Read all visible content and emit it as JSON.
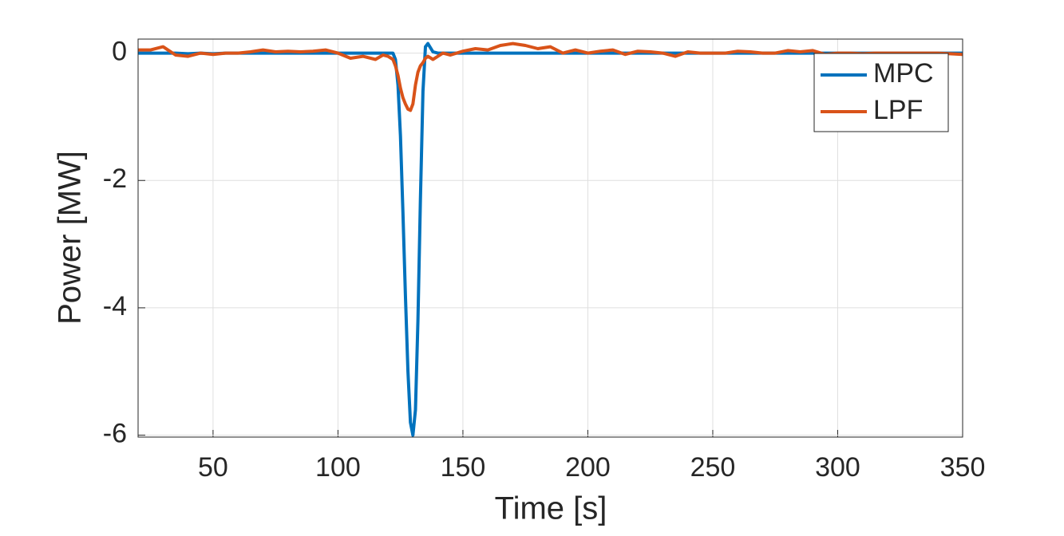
{
  "chart_data": {
    "type": "line",
    "xlabel": "Time [s]",
    "ylabel": "Power [MW]",
    "x": [
      20,
      25,
      30,
      35,
      40,
      45,
      50,
      55,
      60,
      65,
      70,
      75,
      80,
      85,
      90,
      95,
      100,
      105,
      110,
      115,
      118,
      120,
      122,
      123,
      124,
      125,
      126,
      127,
      128,
      129,
      130,
      131,
      132,
      133,
      134,
      135,
      136,
      138,
      140,
      142,
      145,
      150,
      155,
      160,
      165,
      170,
      175,
      180,
      185,
      190,
      195,
      200,
      205,
      210,
      215,
      220,
      225,
      230,
      235,
      240,
      245,
      250,
      255,
      260,
      265,
      270,
      275,
      280,
      285,
      290,
      295,
      300,
      305,
      310,
      315,
      320,
      325,
      330,
      335,
      340,
      345,
      350
    ],
    "series": [
      {
        "name": "MPC",
        "color": "#0072bd",
        "values": [
          0,
          0,
          0,
          0,
          -0.01,
          0,
          -0.01,
          0,
          0,
          0,
          0,
          0,
          0,
          0,
          0,
          0,
          0,
          0,
          0,
          0,
          0,
          0,
          0,
          -0.1,
          -0.5,
          -1.3,
          -2.5,
          -3.8,
          -5.0,
          -5.8,
          -6.0,
          -5.6,
          -4.2,
          -2.3,
          -0.6,
          0.1,
          0.15,
          0.02,
          0,
          0,
          0,
          0,
          0,
          0,
          0,
          0,
          0,
          0,
          0,
          0,
          0,
          0,
          0,
          0,
          0,
          0,
          0,
          0,
          0,
          0,
          0,
          0,
          0,
          0,
          0,
          0,
          0,
          0,
          0,
          0,
          0,
          0,
          0,
          0,
          0,
          0,
          0,
          0,
          0,
          0,
          0,
          0
        ]
      },
      {
        "name": "LPF",
        "color": "#d95319",
        "values": [
          0.05,
          0.05,
          0.1,
          -0.03,
          -0.05,
          0,
          -0.02,
          0,
          0,
          0.02,
          0.05,
          0.02,
          0.03,
          0.02,
          0.03,
          0.05,
          0,
          -0.08,
          -0.05,
          -0.1,
          -0.03,
          -0.05,
          -0.1,
          -0.2,
          -0.35,
          -0.55,
          -0.7,
          -0.8,
          -0.88,
          -0.9,
          -0.8,
          -0.5,
          -0.3,
          -0.2,
          -0.15,
          -0.08,
          -0.05,
          -0.1,
          -0.05,
          0,
          -0.03,
          0.03,
          0.07,
          0.05,
          0.12,
          0.15,
          0.12,
          0.07,
          0.1,
          0,
          0.05,
          0,
          0.03,
          0.05,
          -0.02,
          0.03,
          0.02,
          0,
          -0.05,
          0.02,
          0,
          0,
          0,
          0.03,
          0.02,
          0,
          0,
          0.04,
          0.02,
          0.04,
          -0.02,
          0,
          0,
          -0.01,
          0,
          0,
          0,
          0,
          0,
          0,
          -0.01,
          -0.02
        ]
      }
    ],
    "xlim": [
      20,
      350
    ],
    "ylim": [
      -6.03,
      0.22
    ],
    "xticks": [
      50,
      100,
      150,
      200,
      250,
      300,
      350
    ],
    "yticks": [
      -6,
      -4,
      -2,
      0
    ],
    "grid": true,
    "legend": "top-right"
  }
}
